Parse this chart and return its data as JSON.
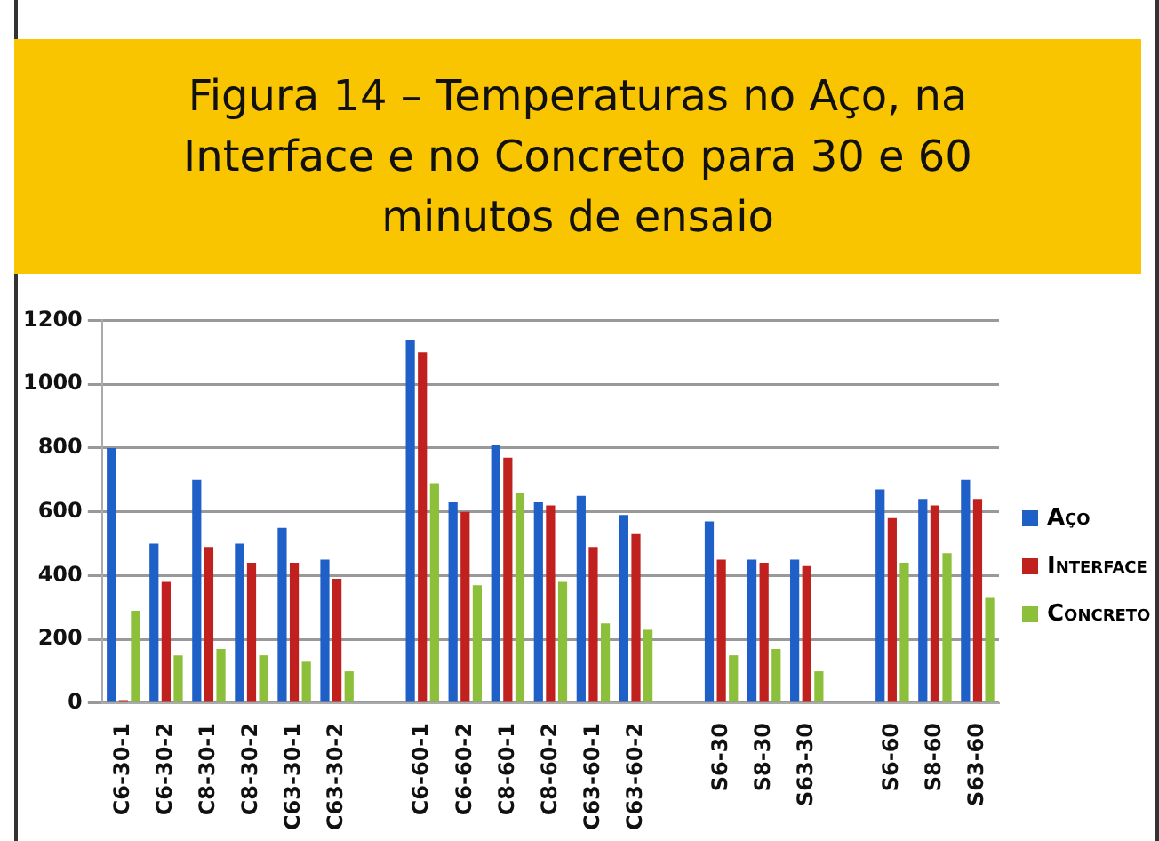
{
  "chart_data": {
    "type": "bar",
    "title": "Figura 14 – Temperaturas no Aço, na Interface e no Concreto para 30 e 60 minutos de ensaio",
    "categories": [
      "C6-30-1",
      "C6-30-2",
      "C8-30-1",
      "C8-30-2",
      "C63-30-1",
      "C63-30-2",
      null,
      "C6-60-1",
      "C6-60-2",
      "C8-60-1",
      "C8-60-2",
      "C63-60-1",
      "C63-60-2",
      null,
      "S6-30",
      "S8-30",
      "S63-30",
      null,
      "S6-60",
      "S8-60",
      "S63-60"
    ],
    "series": [
      {
        "name": "Aço",
        "color": "#1f5fc8",
        "values": [
          800,
          500,
          700,
          500,
          550,
          450,
          null,
          1140,
          630,
          810,
          630,
          650,
          590,
          null,
          570,
          450,
          450,
          null,
          670,
          640,
          700
        ]
      },
      {
        "name": "Interface",
        "color": "#c0211f",
        "values": [
          10,
          380,
          490,
          440,
          440,
          390,
          null,
          1100,
          600,
          770,
          620,
          490,
          530,
          null,
          450,
          440,
          430,
          null,
          580,
          620,
          640
        ]
      },
      {
        "name": "Concreto",
        "color": "#8cbf3a",
        "values": [
          290,
          150,
          170,
          150,
          130,
          100,
          null,
          690,
          370,
          660,
          380,
          250,
          230,
          null,
          150,
          170,
          100,
          null,
          440,
          470,
          330
        ]
      }
    ],
    "ylim": [
      0,
      1200
    ],
    "yticks": [
      0,
      200,
      400,
      600,
      800,
      1000,
      1200
    ],
    "grid": "y",
    "legend": "right"
  }
}
